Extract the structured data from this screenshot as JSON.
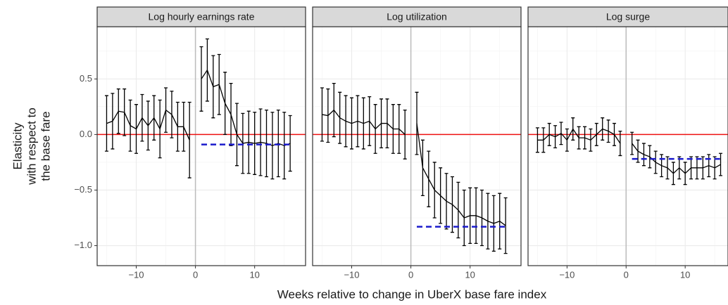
{
  "chart_data": {
    "type": "line",
    "xlabel": "Weeks relative to change in UberX base fare index",
    "ylabel": [
      "Elasticity",
      "with respect to",
      "the base fare"
    ],
    "ylim": [
      -1.18,
      0.97
    ],
    "yticks": [
      {
        "value": -1,
        "label": "−1.0"
      },
      {
        "value": -0.5,
        "label": "−0.5"
      },
      {
        "value": 0,
        "label": "0.0"
      },
      0.5
    ],
    "xticks": [
      {
        "value": -10,
        "label": "−10"
      },
      0,
      10
    ],
    "grid": true,
    "hline": 0,
    "hline_color": "#ee1111",
    "vline": 0,
    "vline_color": "#bbbbbb",
    "line_color": "#000000",
    "ref_color": "#1a1acc",
    "x": [
      -15,
      -14,
      -13,
      -12,
      -11,
      -10,
      -9,
      -8,
      -7,
      -6,
      -5,
      -4,
      -3,
      -2,
      -1,
      0,
      1,
      2,
      3,
      4,
      5,
      6,
      7,
      8,
      9,
      10,
      11,
      12,
      13,
      14,
      15,
      16
    ],
    "panels": [
      {
        "title": "Log hourly earnings rate",
        "xlim": [
          -16.6,
          18.6
        ],
        "values": [
          0.1,
          0.12,
          0.21,
          0.2,
          0.08,
          0.05,
          0.15,
          0.08,
          0.15,
          0.05,
          0.22,
          0.18,
          0.07,
          0.07,
          -0.05,
          null,
          0.5,
          0.58,
          0.43,
          0.45,
          0.28,
          0.18,
          0.0,
          -0.08,
          -0.07,
          -0.08,
          -0.07,
          -0.08,
          -0.1,
          -0.08,
          -0.1,
          -0.08
        ],
        "errors": [
          0.25,
          0.25,
          0.2,
          0.21,
          0.23,
          0.22,
          0.21,
          0.22,
          0.2,
          0.26,
          0.2,
          0.21,
          0.22,
          0.22,
          0.34,
          null,
          0.29,
          0.28,
          0.28,
          0.27,
          0.28,
          0.28,
          0.28,
          0.27,
          0.28,
          0.28,
          0.3,
          0.3,
          0.3,
          0.3,
          0.3,
          0.25
        ],
        "post_mean": {
          "value": -0.09,
          "x": [
            1,
            16
          ]
        }
      },
      {
        "title": "Log utilization",
        "xlim": [
          -16.6,
          18.6
        ],
        "values": [
          0.18,
          0.17,
          0.22,
          0.15,
          0.12,
          0.1,
          0.12,
          0.1,
          0.12,
          0.05,
          0.1,
          0.1,
          0.05,
          0.05,
          0.0,
          null,
          0.1,
          -0.3,
          -0.4,
          -0.5,
          -0.55,
          -0.6,
          -0.63,
          -0.68,
          -0.75,
          -0.73,
          -0.73,
          -0.75,
          -0.78,
          -0.8,
          -0.78,
          -0.82
        ],
        "errors": [
          0.24,
          0.24,
          0.24,
          0.23,
          0.23,
          0.23,
          0.23,
          0.23,
          0.22,
          0.22,
          0.22,
          0.22,
          0.22,
          0.22,
          0.22,
          null,
          0.28,
          0.25,
          0.25,
          0.25,
          0.25,
          0.25,
          0.25,
          0.25,
          0.25,
          0.25,
          0.25,
          0.25,
          0.25,
          0.25,
          0.25,
          0.25
        ],
        "post_mean": {
          "value": -0.83,
          "x": [
            1,
            16
          ]
        }
      },
      {
        "title": "Log surge",
        "xlim": [
          -16.6,
          17.25
        ],
        "values": [
          -0.05,
          -0.05,
          0.0,
          -0.02,
          0.01,
          -0.05,
          0.05,
          -0.03,
          -0.03,
          -0.05,
          0.0,
          0.05,
          0.03,
          0.0,
          -0.08,
          null,
          -0.08,
          -0.15,
          -0.18,
          -0.2,
          -0.25,
          -0.28,
          -0.3,
          -0.35,
          -0.3,
          -0.35,
          -0.3,
          -0.3,
          -0.3,
          -0.28,
          -0.3,
          -0.27
        ],
        "errors": [
          0.11,
          0.11,
          0.1,
          0.1,
          0.1,
          0.1,
          0.1,
          0.1,
          0.1,
          0.1,
          0.1,
          0.1,
          0.1,
          0.1,
          0.11,
          null,
          0.1,
          0.1,
          0.1,
          0.1,
          0.1,
          0.1,
          0.1,
          0.1,
          0.1,
          0.1,
          0.1,
          0.1,
          0.1,
          0.1,
          0.1,
          0.1
        ],
        "post_mean": {
          "value": -0.22,
          "x": [
            1,
            16
          ]
        }
      }
    ]
  }
}
